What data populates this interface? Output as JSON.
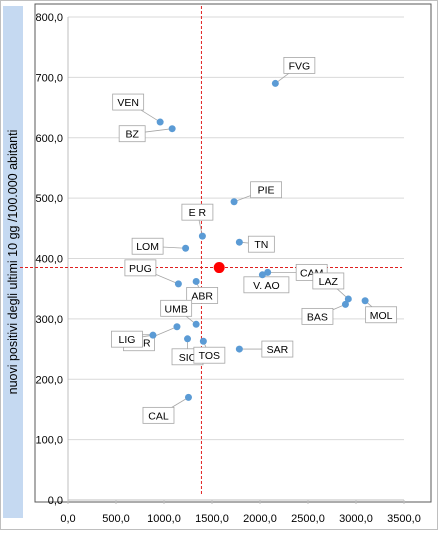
{
  "chart_data": {
    "type": "scatter",
    "title": "",
    "xlabel": "",
    "ylabel": "nuovi positivi degli ultimi 10 gg /100.000 abitanti",
    "xlim": [
      0,
      3500
    ],
    "ylim": [
      0,
      800
    ],
    "x_ticks": [
      "0,0",
      "500,0",
      "1000,0",
      "1500,0",
      "2000,0",
      "2500,0",
      "3000,0",
      "3500,0"
    ],
    "y_ticks": [
      "0,0",
      "100,0",
      "200,0",
      "300,0",
      "400,0",
      "500,0",
      "600,0",
      "700,0",
      "800,0"
    ],
    "x_tick_values": [
      0,
      500,
      1000,
      1500,
      2000,
      2500,
      3000,
      3500
    ],
    "y_tick_values": [
      0,
      100,
      200,
      300,
      400,
      500,
      600,
      700,
      800
    ],
    "grid": "horizontal",
    "reference_lines": {
      "x": 1390,
      "y": 385
    },
    "highlight_point": {
      "x": 1575,
      "y": 385
    },
    "colors": {
      "point": "#5b9bd5",
      "highlight": "#ff0000",
      "reference": "#e02020",
      "grid": "#d9d9d9",
      "ylabel_band": "#c5d9f1"
    },
    "points": [
      {
        "label": "FVG",
        "x": 2160,
        "y": 690
      },
      {
        "label": "VEN",
        "x": 960,
        "y": 626
      },
      {
        "label": "BZ",
        "x": 1085,
        "y": 615
      },
      {
        "label": "PIE",
        "x": 1730,
        "y": 494
      },
      {
        "label": "E R",
        "x": 1400,
        "y": 437
      },
      {
        "label": "TN",
        "x": 1785,
        "y": 427
      },
      {
        "label": "LOM",
        "x": 1225,
        "y": 417
      },
      {
        "label": "CAM",
        "x": 2080,
        "y": 377
      },
      {
        "label": "V. AO",
        "x": 2025,
        "y": 373
      },
      {
        "label": "PUG",
        "x": 1150,
        "y": 358
      },
      {
        "label": "ABR",
        "x": 1335,
        "y": 362
      },
      {
        "label": "LAZ",
        "x": 2920,
        "y": 333
      },
      {
        "label": "MOL",
        "x": 3095,
        "y": 330
      },
      {
        "label": "BAS",
        "x": 2890,
        "y": 324
      },
      {
        "label": "UMB",
        "x": 1335,
        "y": 291
      },
      {
        "label": "MAR",
        "x": 1135,
        "y": 287
      },
      {
        "label": "LIG",
        "x": 885,
        "y": 273
      },
      {
        "label": "SIC",
        "x": 1245,
        "y": 267
      },
      {
        "label": "TOS",
        "x": 1410,
        "y": 263
      },
      {
        "label": "SAR",
        "x": 1785,
        "y": 250
      },
      {
        "label": "CAL",
        "x": 1255,
        "y": 170
      }
    ]
  }
}
